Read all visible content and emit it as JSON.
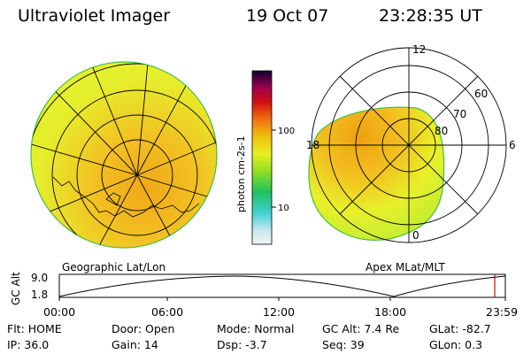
{
  "header": {
    "instrument": "Ultraviolet Imager",
    "date": "19 Oct 07",
    "time": "23:28:35 UT"
  },
  "colorbar": {
    "unit_label": "photon cm-2s-1",
    "tick_labels": [
      "100",
      "10"
    ],
    "scale": "log"
  },
  "left_panel": {
    "caption": "Geographic Lat/Lon"
  },
  "right_panel": {
    "caption": "Apex MLat/MLT",
    "mlt_labels": [
      "12",
      "18",
      "6",
      "0"
    ],
    "mlat_labels": [
      "60",
      "70",
      "80"
    ]
  },
  "altitude_plot": {
    "ylabel": "GC Alt",
    "y_ticks": [
      "9.0",
      "1.8"
    ],
    "x_ticks": [
      "00:00",
      "06:00",
      "12:00",
      "18:00",
      "23:59"
    ],
    "current_time_marker_color": "#d00000"
  },
  "status": {
    "flt": "Flt: HOME",
    "ip": "IP: 36.0",
    "door": "Door: Open",
    "gain": "Gain: 14",
    "mode": "Mode: Normal",
    "dsp": "Dsp:   -3.7",
    "gc_alt": "GC Alt: 7.4 Re",
    "seq": "Seq: 39",
    "glat": "GLat: -82.7",
    "glon": "GLon:   0.3"
  },
  "colors": {
    "aurora_low": "#e8f22a",
    "aurora_mid": "#f2c21a",
    "aurora_high": "#f0a010",
    "limb": "#3fbf3f"
  }
}
